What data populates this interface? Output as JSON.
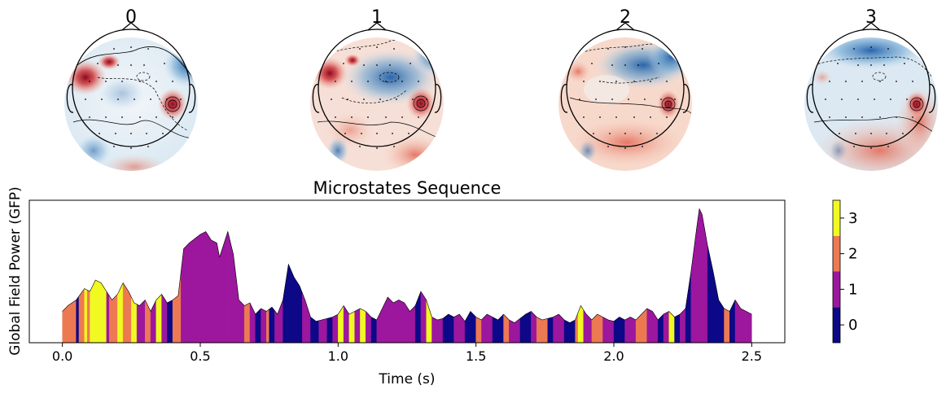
{
  "topomaps": [
    {
      "title": "0"
    },
    {
      "title": "1"
    },
    {
      "title": "2"
    },
    {
      "title": "3"
    }
  ],
  "colormap": [
    "#0d0887",
    "#9c179e",
    "#ed7953",
    "#f0f921"
  ],
  "chart_data": {
    "type": "area",
    "title": "Microstates Sequence",
    "xlabel": "Time (s)",
    "ylabel": "Global Field Power (GFP)",
    "xlim": [
      -0.12,
      2.62
    ],
    "ylim": [
      0,
      1.0
    ],
    "xticks": [
      0.0,
      0.5,
      1.0,
      1.5,
      2.0,
      2.5
    ],
    "xtick_labels": [
      "0.0",
      "0.5",
      "1.0",
      "1.5",
      "2.0",
      "2.5"
    ],
    "colorbar": {
      "ticks": [
        0,
        1,
        2,
        3
      ],
      "labels": [
        "0",
        "1",
        "2",
        "3"
      ]
    },
    "gfp": [
      [
        0.0,
        0.22
      ],
      [
        0.02,
        0.26
      ],
      [
        0.05,
        0.3
      ],
      [
        0.08,
        0.38
      ],
      [
        0.1,
        0.36
      ],
      [
        0.12,
        0.44
      ],
      [
        0.14,
        0.42
      ],
      [
        0.16,
        0.36
      ],
      [
        0.18,
        0.3
      ],
      [
        0.2,
        0.34
      ],
      [
        0.22,
        0.42
      ],
      [
        0.24,
        0.36
      ],
      [
        0.26,
        0.28
      ],
      [
        0.28,
        0.26
      ],
      [
        0.3,
        0.3
      ],
      [
        0.32,
        0.22
      ],
      [
        0.34,
        0.3
      ],
      [
        0.36,
        0.34
      ],
      [
        0.38,
        0.28
      ],
      [
        0.4,
        0.3
      ],
      [
        0.42,
        0.33
      ],
      [
        0.44,
        0.66
      ],
      [
        0.46,
        0.7
      ],
      [
        0.48,
        0.73
      ],
      [
        0.5,
        0.76
      ],
      [
        0.52,
        0.78
      ],
      [
        0.54,
        0.72
      ],
      [
        0.56,
        0.7
      ],
      [
        0.57,
        0.6
      ],
      [
        0.58,
        0.66
      ],
      [
        0.6,
        0.78
      ],
      [
        0.62,
        0.62
      ],
      [
        0.64,
        0.3
      ],
      [
        0.66,
        0.26
      ],
      [
        0.68,
        0.28
      ],
      [
        0.7,
        0.2
      ],
      [
        0.72,
        0.24
      ],
      [
        0.74,
        0.22
      ],
      [
        0.76,
        0.25
      ],
      [
        0.78,
        0.2
      ],
      [
        0.8,
        0.3
      ],
      [
        0.82,
        0.55
      ],
      [
        0.84,
        0.46
      ],
      [
        0.86,
        0.4
      ],
      [
        0.88,
        0.3
      ],
      [
        0.9,
        0.18
      ],
      [
        0.92,
        0.15
      ],
      [
        0.94,
        0.16
      ],
      [
        0.96,
        0.17
      ],
      [
        0.98,
        0.18
      ],
      [
        1.0,
        0.2
      ],
      [
        1.02,
        0.26
      ],
      [
        1.04,
        0.2
      ],
      [
        1.06,
        0.22
      ],
      [
        1.08,
        0.24
      ],
      [
        1.1,
        0.22
      ],
      [
        1.12,
        0.18
      ],
      [
        1.14,
        0.16
      ],
      [
        1.16,
        0.24
      ],
      [
        1.18,
        0.32
      ],
      [
        1.2,
        0.28
      ],
      [
        1.22,
        0.3
      ],
      [
        1.24,
        0.28
      ],
      [
        1.26,
        0.22
      ],
      [
        1.28,
        0.26
      ],
      [
        1.3,
        0.36
      ],
      [
        1.32,
        0.3
      ],
      [
        1.34,
        0.18
      ],
      [
        1.36,
        0.16
      ],
      [
        1.38,
        0.17
      ],
      [
        1.4,
        0.2
      ],
      [
        1.42,
        0.18
      ],
      [
        1.44,
        0.2
      ],
      [
        1.46,
        0.15
      ],
      [
        1.48,
        0.22
      ],
      [
        1.5,
        0.18
      ],
      [
        1.52,
        0.16
      ],
      [
        1.54,
        0.2
      ],
      [
        1.56,
        0.18
      ],
      [
        1.58,
        0.16
      ],
      [
        1.6,
        0.2
      ],
      [
        1.62,
        0.16
      ],
      [
        1.64,
        0.14
      ],
      [
        1.66,
        0.17
      ],
      [
        1.68,
        0.2
      ],
      [
        1.7,
        0.22
      ],
      [
        1.72,
        0.18
      ],
      [
        1.74,
        0.16
      ],
      [
        1.76,
        0.17
      ],
      [
        1.78,
        0.18
      ],
      [
        1.8,
        0.2
      ],
      [
        1.82,
        0.16
      ],
      [
        1.84,
        0.14
      ],
      [
        1.86,
        0.16
      ],
      [
        1.88,
        0.26
      ],
      [
        1.9,
        0.2
      ],
      [
        1.92,
        0.16
      ],
      [
        1.94,
        0.2
      ],
      [
        1.96,
        0.18
      ],
      [
        1.98,
        0.16
      ],
      [
        2.0,
        0.15
      ],
      [
        2.02,
        0.18
      ],
      [
        2.04,
        0.16
      ],
      [
        2.06,
        0.18
      ],
      [
        2.08,
        0.16
      ],
      [
        2.1,
        0.2
      ],
      [
        2.12,
        0.24
      ],
      [
        2.14,
        0.22
      ],
      [
        2.16,
        0.16
      ],
      [
        2.18,
        0.2
      ],
      [
        2.2,
        0.22
      ],
      [
        2.22,
        0.18
      ],
      [
        2.24,
        0.2
      ],
      [
        2.26,
        0.24
      ],
      [
        2.28,
        0.5
      ],
      [
        2.3,
        0.8
      ],
      [
        2.31,
        0.94
      ],
      [
        2.32,
        0.9
      ],
      [
        2.34,
        0.68
      ],
      [
        2.36,
        0.5
      ],
      [
        2.38,
        0.3
      ],
      [
        2.4,
        0.24
      ],
      [
        2.42,
        0.22
      ],
      [
        2.44,
        0.3
      ],
      [
        2.46,
        0.24
      ],
      [
        2.48,
        0.22
      ],
      [
        2.5,
        0.2
      ]
    ],
    "segments": [
      [
        0.0,
        0.05,
        2
      ],
      [
        0.05,
        0.06,
        0
      ],
      [
        0.06,
        0.08,
        2
      ],
      [
        0.08,
        0.09,
        3
      ],
      [
        0.09,
        0.1,
        2
      ],
      [
        0.1,
        0.16,
        3
      ],
      [
        0.16,
        0.17,
        1
      ],
      [
        0.17,
        0.2,
        2
      ],
      [
        0.2,
        0.22,
        3
      ],
      [
        0.22,
        0.25,
        2
      ],
      [
        0.25,
        0.27,
        3
      ],
      [
        0.27,
        0.3,
        1
      ],
      [
        0.3,
        0.32,
        2
      ],
      [
        0.32,
        0.34,
        1
      ],
      [
        0.34,
        0.36,
        3
      ],
      [
        0.36,
        0.38,
        1
      ],
      [
        0.38,
        0.4,
        0
      ],
      [
        0.4,
        0.43,
        2
      ],
      [
        0.43,
        0.6,
        1
      ],
      [
        0.6,
        0.66,
        1
      ],
      [
        0.66,
        0.68,
        2
      ],
      [
        0.68,
        0.7,
        1
      ],
      [
        0.7,
        0.72,
        0
      ],
      [
        0.72,
        0.74,
        1
      ],
      [
        0.74,
        0.75,
        2
      ],
      [
        0.75,
        0.77,
        0
      ],
      [
        0.77,
        0.8,
        1
      ],
      [
        0.8,
        0.87,
        0
      ],
      [
        0.87,
        0.9,
        1
      ],
      [
        0.9,
        0.93,
        0
      ],
      [
        0.93,
        0.96,
        1
      ],
      [
        0.96,
        0.98,
        0
      ],
      [
        0.98,
        1.0,
        1
      ],
      [
        1.0,
        1.02,
        3
      ],
      [
        1.02,
        1.04,
        1
      ],
      [
        1.04,
        1.06,
        3
      ],
      [
        1.06,
        1.08,
        1
      ],
      [
        1.08,
        1.1,
        3
      ],
      [
        1.1,
        1.12,
        1
      ],
      [
        1.12,
        1.14,
        0
      ],
      [
        1.14,
        1.28,
        1
      ],
      [
        1.28,
        1.3,
        0
      ],
      [
        1.3,
        1.32,
        1
      ],
      [
        1.32,
        1.34,
        3
      ],
      [
        1.34,
        1.38,
        1
      ],
      [
        1.38,
        1.42,
        0
      ],
      [
        1.42,
        1.46,
        1
      ],
      [
        1.46,
        1.5,
        0
      ],
      [
        1.5,
        1.52,
        2
      ],
      [
        1.52,
        1.56,
        1
      ],
      [
        1.56,
        1.6,
        0
      ],
      [
        1.6,
        1.62,
        2
      ],
      [
        1.62,
        1.66,
        1
      ],
      [
        1.66,
        1.7,
        0
      ],
      [
        1.7,
        1.72,
        1
      ],
      [
        1.72,
        1.76,
        2
      ],
      [
        1.76,
        1.78,
        0
      ],
      [
        1.78,
        1.82,
        1
      ],
      [
        1.82,
        1.86,
        0
      ],
      [
        1.86,
        1.87,
        2
      ],
      [
        1.87,
        1.89,
        3
      ],
      [
        1.89,
        1.92,
        1
      ],
      [
        1.92,
        1.96,
        2
      ],
      [
        1.96,
        2.0,
        1
      ],
      [
        2.0,
        2.04,
        0
      ],
      [
        2.04,
        2.08,
        1
      ],
      [
        2.08,
        2.12,
        2
      ],
      [
        2.12,
        2.16,
        1
      ],
      [
        2.16,
        2.18,
        0
      ],
      [
        2.18,
        2.2,
        1
      ],
      [
        2.2,
        2.22,
        3
      ],
      [
        2.22,
        2.24,
        0
      ],
      [
        2.24,
        2.26,
        1
      ],
      [
        2.26,
        2.28,
        0
      ],
      [
        2.28,
        2.34,
        1
      ],
      [
        2.34,
        2.4,
        0
      ],
      [
        2.4,
        2.42,
        2
      ],
      [
        2.42,
        2.44,
        0
      ],
      [
        2.44,
        2.48,
        1
      ],
      [
        2.48,
        2.5,
        1
      ]
    ]
  }
}
